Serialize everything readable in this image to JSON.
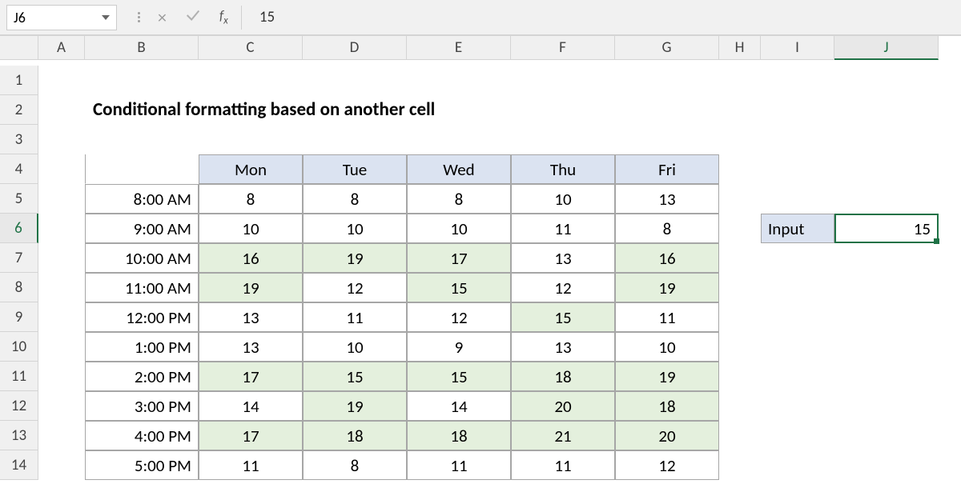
{
  "formula_bar": {
    "name_box": "J6",
    "fx_label": "fx",
    "value": "15"
  },
  "columns": [
    "A",
    "B",
    "C",
    "D",
    "E",
    "F",
    "G",
    "H",
    "I",
    "J"
  ],
  "rows_shown": [
    "1",
    "2",
    "3",
    "4",
    "5",
    "6",
    "7",
    "8",
    "9",
    "10",
    "11",
    "12",
    "13",
    "14"
  ],
  "title": "Conditional formatting based on another cell",
  "table": {
    "days": [
      "Mon",
      "Tue",
      "Wed",
      "Thu",
      "Fri"
    ],
    "times": [
      "8:00 AM",
      "9:00 AM",
      "10:00 AM",
      "11:00 AM",
      "12:00 PM",
      "1:00 PM",
      "2:00 PM",
      "3:00 PM",
      "4:00 PM",
      "5:00 PM"
    ],
    "values": [
      [
        8,
        8,
        8,
        10,
        13
      ],
      [
        10,
        10,
        10,
        11,
        8
      ],
      [
        16,
        19,
        17,
        13,
        16
      ],
      [
        19,
        12,
        15,
        12,
        19
      ],
      [
        13,
        11,
        12,
        15,
        11
      ],
      [
        13,
        10,
        9,
        13,
        10
      ],
      [
        17,
        15,
        15,
        18,
        19
      ],
      [
        14,
        19,
        14,
        20,
        18
      ],
      [
        17,
        18,
        18,
        21,
        20
      ],
      [
        11,
        8,
        11,
        11,
        12
      ]
    ],
    "header_bg": "#dbe3f1",
    "highlight_bg": "#e4f0dd",
    "border_color": "#a6a6a6"
  },
  "input": {
    "label": "Input",
    "value": 15,
    "cell_ref": "J6",
    "accent": "#1f7246"
  },
  "selected": {
    "col_index": 9,
    "row_index": 5
  }
}
